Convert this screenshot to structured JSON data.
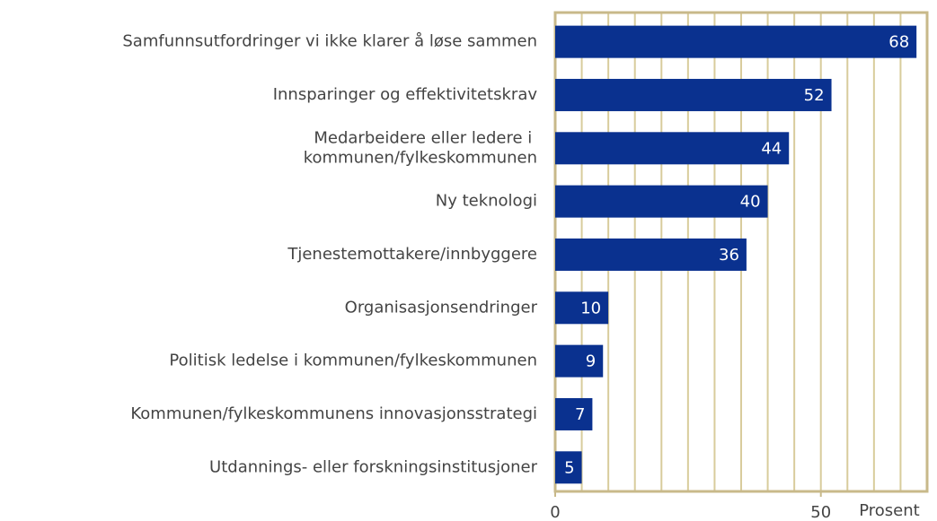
{
  "chart_data": {
    "type": "bar",
    "orientation": "horizontal",
    "categories": [
      "Samfunnsutfordringer vi ikke klarer å løse sammen",
      "Innsparinger og effektivitetskrav",
      "Medarbeidere eller ledere i \nkommunen/fylkeskommunen",
      "Ny teknologi",
      "Tjenestemottakere/innbyggere",
      "Organisasjonsendringer",
      "Politisk ledelse i kommunen/fylkeskommunen",
      "Kommunen/fylkeskommunens innovasjonsstrategi",
      "Utdannings- eller forskningsinstitusjoner"
    ],
    "values": [
      68,
      52,
      44,
      40,
      36,
      10,
      9,
      7,
      5
    ],
    "color": "#0a318f",
    "grid_color": "#d8cc9c",
    "frame_color": "#c8b98a",
    "x_label": "Prosent",
    "xlim": [
      0,
      70
    ],
    "xticks": [
      0,
      50
    ],
    "minor_xticks": [
      5,
      10,
      15,
      20,
      25,
      30,
      35,
      40,
      45,
      50,
      55,
      60,
      65
    ],
    "grid": true
  }
}
